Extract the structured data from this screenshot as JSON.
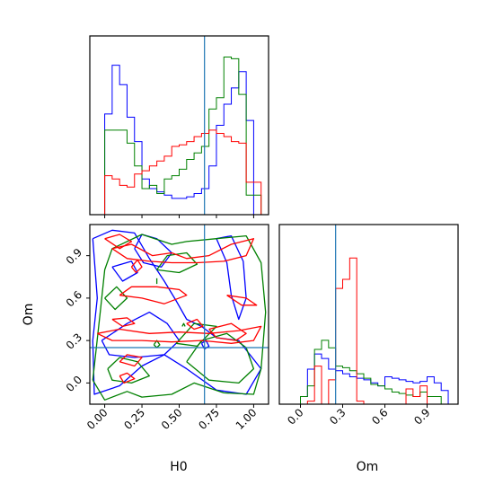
{
  "chart_data": {
    "type": "corner",
    "parameters": [
      "H0",
      "Om"
    ],
    "truths": {
      "H0": 0.67,
      "Om": 0.25
    },
    "colors": {
      "blue": "#0000ff",
      "green": "#008000",
      "red": "#ff0000",
      "truth": "#1f77b4"
    },
    "xlabels": {
      "H0": "H0",
      "Om": "Om"
    },
    "ylabel": "Om",
    "ticks": {
      "H0": [
        "0.00",
        "0.25",
        "0.50",
        "0.75",
        "1.00"
      ],
      "Om": [
        "0.0",
        "0.3",
        "0.6",
        "0.9"
      ]
    },
    "ranges": {
      "H0": [
        -0.1,
        1.1
      ],
      "Om": [
        -0.15,
        1.12
      ]
    },
    "h0_hist": {
      "bin_edges": [
        -0.1,
        -0.05,
        0.0,
        0.05,
        0.1,
        0.15,
        0.2,
        0.25,
        0.3,
        0.35,
        0.4,
        0.45,
        0.5,
        0.55,
        0.6,
        0.65,
        0.7,
        0.75,
        0.8,
        0.85,
        0.9,
        0.95,
        1.0,
        1.05,
        1.1
      ],
      "series": [
        {
          "color": "blue",
          "values": [
            0.0,
            0.0,
            0.62,
            0.92,
            0.8,
            0.6,
            0.45,
            0.22,
            0.16,
            0.14,
            0.12,
            0.1,
            0.1,
            0.11,
            0.13,
            0.16,
            0.3,
            0.55,
            0.68,
            0.78,
            0.88,
            0.58,
            0.0,
            0.0
          ]
        },
        {
          "color": "green",
          "values": [
            0.0,
            0.0,
            0.52,
            0.52,
            0.52,
            0.44,
            0.3,
            0.16,
            0.18,
            0.13,
            0.22,
            0.24,
            0.28,
            0.34,
            0.38,
            0.42,
            0.65,
            0.72,
            0.97,
            0.96,
            0.74,
            0.12,
            0.12,
            0.0
          ]
        },
        {
          "color": "red",
          "values": [
            0.0,
            0.0,
            0.24,
            0.22,
            0.18,
            0.17,
            0.25,
            0.27,
            0.3,
            0.33,
            0.36,
            0.42,
            0.43,
            0.45,
            0.48,
            0.5,
            0.52,
            0.5,
            0.48,
            0.45,
            0.44,
            0.2,
            0.2,
            0.0
          ]
        }
      ],
      "ymax": 1.1
    },
    "om_hist": {
      "bin_edges": [
        -0.1,
        -0.05,
        0.0,
        0.05,
        0.1,
        0.15,
        0.2,
        0.25,
        0.3,
        0.35,
        0.4,
        0.45,
        0.5,
        0.55,
        0.6,
        0.65,
        0.7,
        0.75,
        0.8,
        0.85,
        0.9,
        0.95,
        1.0,
        1.05,
        1.1
      ],
      "series": [
        {
          "color": "blue",
          "values": [
            0.0,
            0.0,
            0.05,
            0.23,
            0.33,
            0.3,
            0.23,
            0.22,
            0.2,
            0.18,
            0.17,
            0.16,
            0.14,
            0.12,
            0.18,
            0.17,
            0.16,
            0.15,
            0.14,
            0.15,
            0.18,
            0.14,
            0.09,
            0.0
          ]
        },
        {
          "color": "green",
          "values": [
            0.0,
            0.0,
            0.05,
            0.12,
            0.36,
            0.42,
            0.37,
            0.25,
            0.24,
            0.22,
            0.2,
            0.17,
            0.13,
            0.12,
            0.1,
            0.08,
            0.07,
            0.06,
            0.05,
            0.08,
            0.05,
            0.05,
            0.0,
            0.0
          ]
        },
        {
          "color": "red",
          "values": [
            0.0,
            0.0,
            0.0,
            0.02,
            0.25,
            0.0,
            0.16,
            0.76,
            0.82,
            0.96,
            0.02,
            0.0,
            0.0,
            0.0,
            0.0,
            0.0,
            0.0,
            0.1,
            0.05,
            0.12,
            0.0,
            0.0,
            0.0,
            0.0
          ]
        }
      ],
      "ymax": 1.18
    },
    "contours": [
      {
        "color": "blue",
        "polylines": [
          [
            [
              -0.08,
              1.02
            ],
            [
              0.05,
              1.08
            ],
            [
              0.2,
              1.06
            ],
            [
              0.3,
              0.88
            ],
            [
              0.4,
              0.72
            ],
            [
              0.48,
              0.58
            ],
            [
              0.55,
              0.45
            ],
            [
              0.65,
              0.4
            ],
            [
              0.75,
              0.32
            ],
            [
              0.9,
              0.3
            ],
            [
              1.05,
              0.1
            ],
            [
              0.95,
              -0.08
            ],
            [
              0.75,
              -0.05
            ],
            [
              0.55,
              0.1
            ],
            [
              0.4,
              0.2
            ],
            [
              0.25,
              0.12
            ],
            [
              0.1,
              -0.02
            ],
            [
              -0.07,
              -0.08
            ],
            [
              -0.08,
              0.3
            ],
            [
              -0.05,
              0.6
            ],
            [
              -0.08,
              1.02
            ]
          ],
          [
            [
              -0.02,
              0.3
            ],
            [
              0.15,
              0.42
            ],
            [
              0.3,
              0.5
            ],
            [
              0.42,
              0.42
            ],
            [
              0.5,
              0.3
            ],
            [
              0.4,
              0.2
            ],
            [
              0.2,
              0.18
            ],
            [
              0.03,
              0.2
            ],
            [
              -0.02,
              0.3
            ]
          ],
          [
            [
              0.2,
              0.95
            ],
            [
              0.25,
              1.05
            ],
            [
              0.35,
              1.02
            ],
            [
              0.45,
              0.92
            ],
            [
              0.38,
              0.82
            ],
            [
              0.26,
              0.85
            ],
            [
              0.2,
              0.95
            ]
          ],
          [
            [
              0.75,
              1.02
            ],
            [
              0.85,
              1.04
            ],
            [
              0.93,
              0.86
            ],
            [
              0.95,
              0.6
            ],
            [
              0.9,
              0.45
            ],
            [
              0.85,
              0.62
            ],
            [
              0.82,
              0.85
            ],
            [
              0.75,
              1.02
            ]
          ],
          [
            [
              0.05,
              0.82
            ],
            [
              0.18,
              0.86
            ],
            [
              0.22,
              0.78
            ],
            [
              0.12,
              0.72
            ],
            [
              0.05,
              0.82
            ]
          ],
          [
            [
              0.65,
              0.28
            ],
            [
              0.68,
              0.3
            ],
            [
              0.7,
              0.26
            ],
            [
              0.67,
              0.24
            ],
            [
              0.65,
              0.28
            ]
          ]
        ]
      },
      {
        "color": "green",
        "polylines": [
          [
            [
              -0.08,
              0.02
            ],
            [
              -0.03,
              0.5
            ],
            [
              0.0,
              0.8
            ],
            [
              0.05,
              0.95
            ],
            [
              0.25,
              1.05
            ],
            [
              0.45,
              0.98
            ],
            [
              0.55,
              1.0
            ],
            [
              0.75,
              1.02
            ],
            [
              0.95,
              1.04
            ],
            [
              1.05,
              0.85
            ],
            [
              1.08,
              0.5
            ],
            [
              1.05,
              0.1
            ],
            [
              1.0,
              -0.08
            ],
            [
              0.8,
              -0.07
            ],
            [
              0.6,
              0.0
            ],
            [
              0.45,
              -0.08
            ],
            [
              0.25,
              -0.1
            ],
            [
              0.15,
              -0.06
            ],
            [
              0.0,
              -0.12
            ],
            [
              -0.08,
              0.02
            ]
          ],
          [
            [
              0.02,
              0.1
            ],
            [
              0.1,
              0.18
            ],
            [
              0.22,
              0.15
            ],
            [
              0.3,
              0.05
            ],
            [
              0.18,
              0.0
            ],
            [
              0.05,
              0.02
            ],
            [
              0.02,
              0.1
            ]
          ],
          [
            [
              0.55,
              0.15
            ],
            [
              0.65,
              0.3
            ],
            [
              0.82,
              0.35
            ],
            [
              0.95,
              0.25
            ],
            [
              1.0,
              0.1
            ],
            [
              0.9,
              0.0
            ],
            [
              0.7,
              0.02
            ],
            [
              0.55,
              0.15
            ]
          ],
          [
            [
              0.48,
              0.28
            ],
            [
              0.6,
              0.42
            ],
            [
              0.75,
              0.4
            ],
            [
              0.62,
              0.26
            ],
            [
              0.48,
              0.28
            ]
          ],
          [
            [
              0.0,
              0.6
            ],
            [
              0.08,
              0.68
            ],
            [
              0.15,
              0.6
            ],
            [
              0.07,
              0.52
            ],
            [
              0.0,
              0.6
            ]
          ],
          [
            [
              0.35,
              0.8
            ],
            [
              0.42,
              0.9
            ],
            [
              0.55,
              0.92
            ],
            [
              0.62,
              0.84
            ],
            [
              0.5,
              0.78
            ],
            [
              0.35,
              0.8
            ]
          ],
          [
            [
              0.35,
              0.7
            ],
            [
              0.35,
              0.74
            ]
          ],
          [
            [
              0.33,
              0.27
            ],
            [
              0.35,
              0.3
            ],
            [
              0.37,
              0.27
            ],
            [
              0.35,
              0.25
            ],
            [
              0.33,
              0.27
            ]
          ],
          [
            [
              0.52,
              0.4
            ],
            [
              0.53,
              0.42
            ],
            [
              0.54,
              0.4
            ]
          ]
        ]
      },
      {
        "color": "red",
        "polylines": [
          [
            [
              0.0,
              1.02
            ],
            [
              0.1,
              1.05
            ],
            [
              0.18,
              1.0
            ],
            [
              0.1,
              0.95
            ],
            [
              0.0,
              1.02
            ]
          ],
          [
            [
              0.05,
              0.95
            ],
            [
              0.18,
              0.98
            ],
            [
              0.32,
              0.9
            ],
            [
              0.45,
              0.92
            ],
            [
              0.55,
              0.88
            ],
            [
              0.7,
              0.9
            ],
            [
              0.85,
              0.98
            ],
            [
              1.0,
              1.02
            ],
            [
              0.95,
              0.9
            ],
            [
              0.8,
              0.86
            ],
            [
              0.62,
              0.85
            ],
            [
              0.45,
              0.85
            ],
            [
              0.3,
              0.86
            ],
            [
              0.15,
              0.88
            ],
            [
              0.05,
              0.95
            ]
          ],
          [
            [
              0.18,
              0.82
            ],
            [
              0.22,
              0.87
            ],
            [
              0.25,
              0.82
            ],
            [
              0.21,
              0.78
            ],
            [
              0.18,
              0.82
            ]
          ],
          [
            [
              0.1,
              0.62
            ],
            [
              0.25,
              0.6
            ],
            [
              0.4,
              0.56
            ],
            [
              0.55,
              0.62
            ],
            [
              0.5,
              0.66
            ],
            [
              0.35,
              0.68
            ],
            [
              0.18,
              0.68
            ],
            [
              0.1,
              0.62
            ]
          ],
          [
            [
              0.82,
              0.62
            ],
            [
              0.95,
              0.6
            ],
            [
              1.02,
              0.55
            ],
            [
              0.92,
              0.55
            ],
            [
              0.82,
              0.62
            ]
          ],
          [
            [
              0.05,
              0.45
            ],
            [
              0.15,
              0.46
            ],
            [
              0.2,
              0.42
            ],
            [
              0.12,
              0.4
            ],
            [
              0.05,
              0.45
            ]
          ],
          [
            [
              -0.05,
              0.35
            ],
            [
              0.1,
              0.38
            ],
            [
              0.3,
              0.35
            ],
            [
              0.5,
              0.36
            ],
            [
              0.7,
              0.35
            ],
            [
              0.9,
              0.37
            ],
            [
              1.05,
              0.4
            ],
            [
              1.0,
              0.3
            ],
            [
              0.85,
              0.28
            ],
            [
              0.65,
              0.3
            ],
            [
              0.45,
              0.29
            ],
            [
              0.25,
              0.3
            ],
            [
              0.05,
              0.3
            ],
            [
              -0.05,
              0.35
            ]
          ],
          [
            [
              0.1,
              0.15
            ],
            [
              0.2,
              0.12
            ],
            [
              0.25,
              0.18
            ],
            [
              0.15,
              0.2
            ],
            [
              0.1,
              0.15
            ]
          ],
          [
            [
              0.7,
              0.38
            ],
            [
              0.85,
              0.42
            ],
            [
              0.95,
              0.35
            ],
            [
              0.88,
              0.3
            ],
            [
              0.75,
              0.32
            ],
            [
              0.7,
              0.38
            ]
          ],
          [
            [
              0.55,
              0.42
            ],
            [
              0.62,
              0.45
            ],
            [
              0.66,
              0.4
            ],
            [
              0.6,
              0.38
            ],
            [
              0.55,
              0.42
            ]
          ],
          [
            [
              0.1,
              0.05
            ],
            [
              0.15,
              0.07
            ],
            [
              0.2,
              0.03
            ],
            [
              0.13,
              0.0
            ],
            [
              0.1,
              0.05
            ]
          ]
        ]
      }
    ]
  }
}
